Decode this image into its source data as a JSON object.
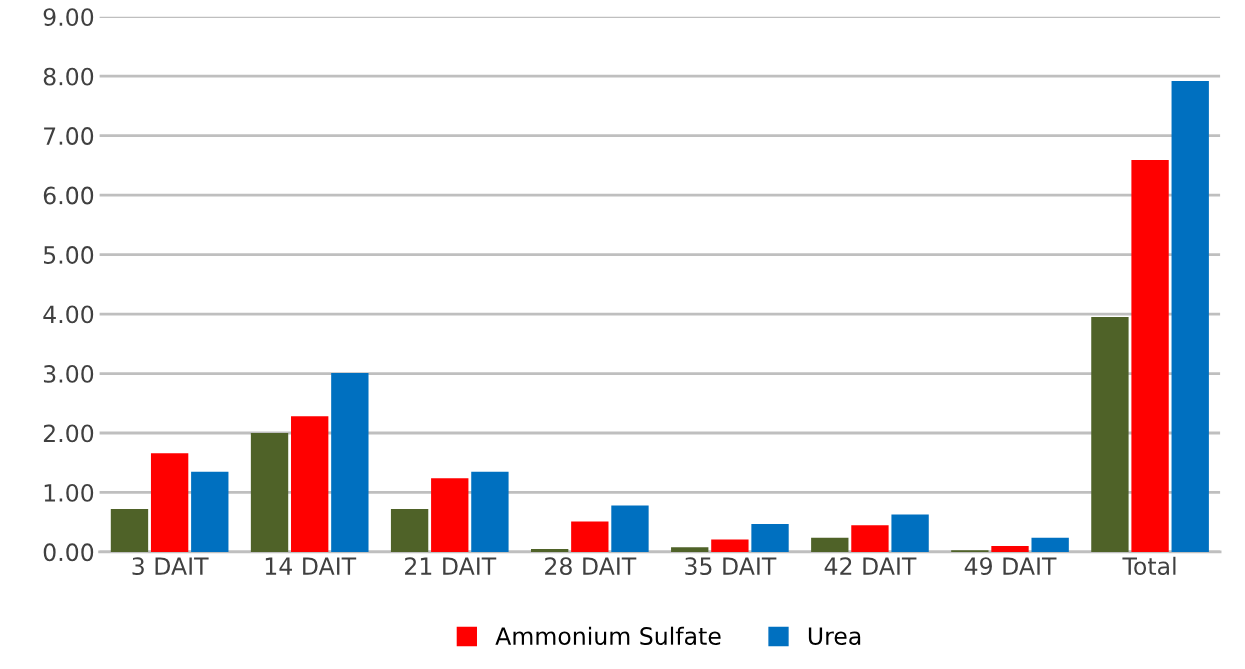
{
  "chart_data": {
    "type": "bar",
    "categories": [
      "3 DAIT",
      "14 DAIT",
      "21 DAIT",
      "28 DAIT",
      "35 DAIT",
      "42 DAIT",
      "49 DAIT",
      "Total"
    ],
    "series": [
      {
        "color": "#4f6228",
        "values": [
          0.72,
          2.0,
          0.72,
          0.05,
          0.08,
          0.24,
          0.03,
          3.95
        ]
      },
      {
        "name": "Ammonium Sulfate",
        "color": "#ff0000",
        "values": [
          1.66,
          2.28,
          1.24,
          0.51,
          0.21,
          0.45,
          0.1,
          6.59
        ]
      },
      {
        "name": "Urea",
        "color": "#0070c0",
        "values": [
          1.35,
          3.01,
          1.35,
          0.78,
          0.47,
          0.63,
          0.24,
          7.92
        ]
      }
    ],
    "ylim": [
      0,
      9
    ],
    "yticks": [
      {
        "value": 0,
        "label": "0.00"
      },
      {
        "value": 1,
        "label": "1.00"
      },
      {
        "value": 2,
        "label": "2.00"
      },
      {
        "value": 3,
        "label": "3.00"
      },
      {
        "value": 4,
        "label": "4.00"
      },
      {
        "value": 5,
        "label": "5.00"
      },
      {
        "value": 6,
        "label": "6.00"
      },
      {
        "value": 7,
        "label": "7.00"
      },
      {
        "value": 8,
        "label": "8.00"
      },
      {
        "value": 9,
        "label": "9.00"
      }
    ],
    "grid": "y",
    "legend": "bottom"
  }
}
